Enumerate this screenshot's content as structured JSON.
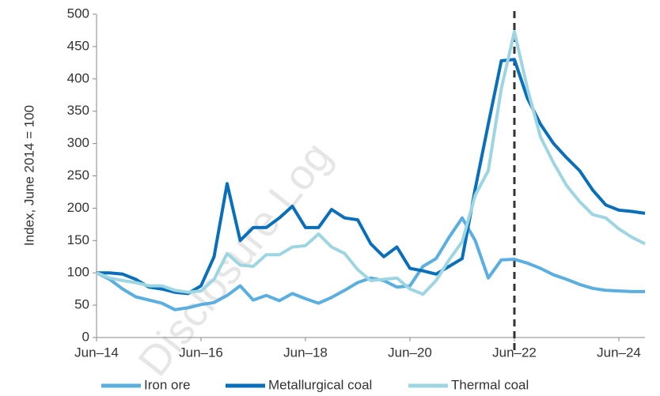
{
  "chart_data": {
    "type": "line",
    "y_label": "Index, June 2014 = 100",
    "watermark": "Disclosure Log",
    "categories": [
      "Jun–14",
      null,
      null,
      null,
      null,
      null,
      null,
      null,
      "Jun–16",
      null,
      null,
      null,
      null,
      null,
      null,
      null,
      "Jun–18",
      null,
      null,
      null,
      null,
      null,
      null,
      null,
      "Jun–20",
      null,
      null,
      null,
      null,
      null,
      null,
      null,
      "Jun–22",
      null,
      null,
      null,
      null,
      null,
      null,
      null,
      "Jun–24",
      null,
      null
    ],
    "vline": "Jun–22",
    "ylim": [
      0,
      500
    ],
    "yticks": [
      0,
      50,
      100,
      150,
      200,
      250,
      300,
      350,
      400,
      450,
      500
    ],
    "grid": false,
    "legend": "bottom",
    "series": [
      {
        "name": "Iron ore",
        "color": "#5aaee0",
        "values": [
          100,
          90,
          75,
          63,
          58,
          53,
          43,
          46,
          51,
          54,
          65,
          80,
          58,
          65,
          57,
          68,
          60,
          53,
          62,
          73,
          85,
          92,
          88,
          78,
          80,
          110,
          122,
          155,
          185,
          150,
          92,
          120,
          121,
          115,
          107,
          97,
          90,
          82,
          76,
          73,
          72,
          71,
          71
        ]
      },
      {
        "name": "Metallurgical coal",
        "color": "#0a6fba",
        "values": [
          100,
          100,
          98,
          90,
          78,
          75,
          70,
          68,
          80,
          125,
          238,
          150,
          170,
          170,
          185,
          203,
          170,
          170,
          198,
          185,
          182,
          145,
          125,
          140,
          107,
          103,
          98,
          110,
          122,
          230,
          330,
          428,
          430,
          370,
          330,
          300,
          278,
          258,
          228,
          205,
          197,
          195,
          192
        ]
      },
      {
        "name": "Thermal coal",
        "color": "#9dd6e2",
        "values": [
          100,
          92,
          88,
          85,
          80,
          80,
          73,
          70,
          72,
          90,
          130,
          112,
          110,
          128,
          128,
          140,
          142,
          160,
          140,
          130,
          105,
          88,
          90,
          92,
          75,
          67,
          88,
          120,
          148,
          220,
          258,
          385,
          473,
          385,
          310,
          270,
          235,
          210,
          190,
          185,
          168,
          155,
          145
        ]
      }
    ]
  }
}
